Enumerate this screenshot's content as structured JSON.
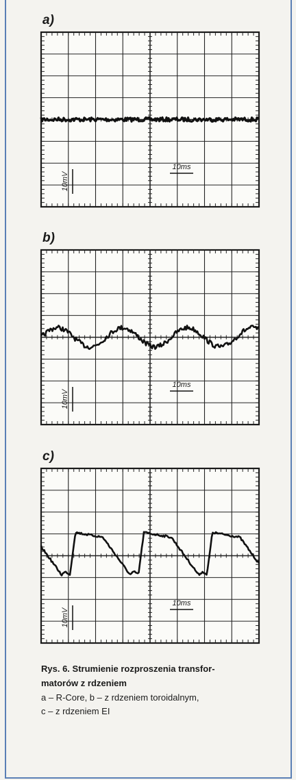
{
  "panels": [
    {
      "label": "a)",
      "volt": "10mV",
      "time": "10ms"
    },
    {
      "label": "b)",
      "volt": "10mV",
      "time": "10ms"
    },
    {
      "label": "c)",
      "volt": "10mV",
      "time": "10ms"
    }
  ],
  "caption": {
    "title_lines": [
      "Rys. 6. Strumienie rozproszenia transfor-",
      "matorów z rdzeniem"
    ],
    "lines": [
      "a – R-Core, b – z rdzeniem toroidalnym,",
      "c – z rdzeniem EI"
    ]
  }
}
